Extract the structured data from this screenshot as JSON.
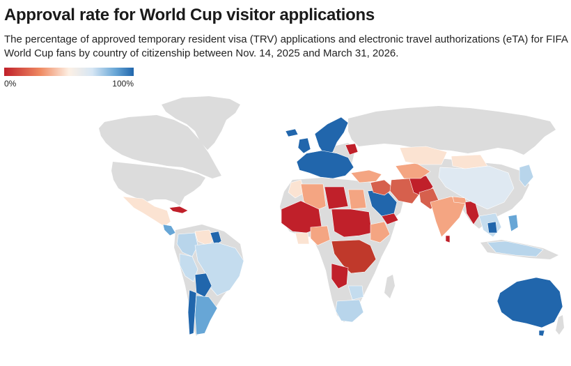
{
  "title": "Approval rate for World Cup visitor applications",
  "subtitle": "The percentage of approved temporary resident visa (TRV) applications and electronic travel authorizations (eTA) for FIFA World Cup fans by country of citizenship between Nov. 14, 2025 and March 31, 2026.",
  "legend": {
    "min_label": "0%",
    "max_label": "100%"
  },
  "colors": {
    "no_data": "#dcdcdc",
    "very_low": "#c0202a",
    "low": "#d6604d",
    "mid_low": "#f4a582",
    "mid": "#fdf0e4",
    "mid_high": "#d1e5f0",
    "high": "#92c5de",
    "very_high": "#2166ac"
  }
}
